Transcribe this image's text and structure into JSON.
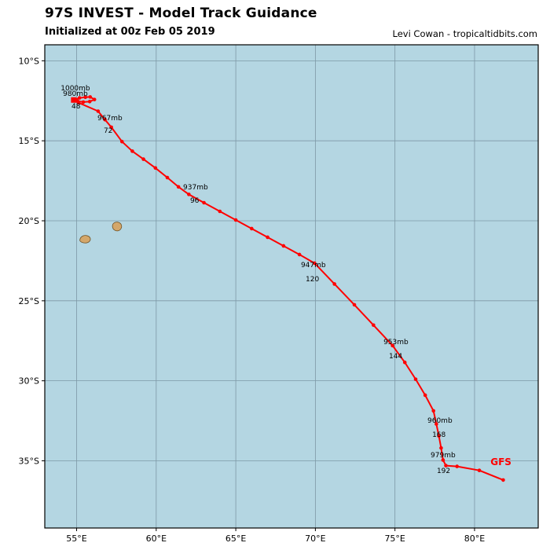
{
  "header": {
    "title": "97S INVEST - Model Track Guidance",
    "subtitle": "Initialized at 00z Feb 05 2019",
    "credit": "Levi Cowan - tropicaltidbits.com"
  },
  "chart_data": {
    "type": "line",
    "title": "97S INVEST - Model Track Guidance",
    "subtitle": "Initialized at 00z Feb 05 2019",
    "grid": true,
    "legend_position": "none",
    "x_axis": {
      "range": [
        53,
        84
      ],
      "ticks": [
        55,
        60,
        65,
        70,
        75,
        80
      ],
      "tick_labels": [
        "55°E",
        "60°E",
        "65°E",
        "70°E",
        "75°E",
        "80°E"
      ]
    },
    "y_axis": {
      "range": [
        9,
        39.2
      ],
      "direction": "south-down",
      "ticks": [
        10,
        15,
        20,
        25,
        30,
        35
      ],
      "tick_labels": [
        "10°S",
        "15°S",
        "20°S",
        "25°S",
        "30°S",
        "35°S"
      ]
    },
    "colors": {
      "ocean": "#b4d6e2",
      "grid": "#7d98a6",
      "border": "#000000",
      "track": "#ff0000",
      "land_fill": "#d4a76a",
      "land_stroke": "#6e5126",
      "text": "#000000"
    },
    "series": [
      {
        "name": "GFS",
        "color": "#ff0000",
        "points_lon_lat": [
          [
            54.82,
            12.45
          ],
          [
            55.18,
            12.32
          ],
          [
            55.55,
            12.28
          ],
          [
            55.85,
            12.26
          ],
          [
            56.12,
            12.42
          ],
          [
            55.82,
            12.55
          ],
          [
            55.42,
            12.58
          ],
          [
            55.06,
            12.52
          ],
          [
            55.12,
            12.62
          ],
          [
            56.35,
            13.15
          ],
          [
            56.78,
            13.68
          ],
          [
            57.18,
            14.15
          ],
          [
            57.85,
            15.05
          ],
          [
            58.5,
            15.65
          ],
          [
            59.2,
            16.15
          ],
          [
            59.95,
            16.7
          ],
          [
            60.7,
            17.3
          ],
          [
            61.4,
            17.88
          ],
          [
            62.05,
            18.35
          ],
          [
            63.0,
            18.87
          ],
          [
            64.0,
            19.41
          ],
          [
            65.0,
            19.95
          ],
          [
            66.0,
            20.49
          ],
          [
            67.0,
            21.03
          ],
          [
            68.0,
            21.57
          ],
          [
            69.0,
            22.11
          ],
          [
            69.95,
            22.65
          ],
          [
            71.2,
            23.95
          ],
          [
            72.45,
            25.25
          ],
          [
            73.65,
            26.52
          ],
          [
            74.85,
            27.8
          ],
          [
            75.62,
            28.85
          ],
          [
            76.3,
            29.9
          ],
          [
            76.9,
            30.9
          ],
          [
            77.42,
            31.88
          ],
          [
            77.6,
            32.7
          ],
          [
            77.76,
            33.45
          ],
          [
            77.9,
            34.2
          ],
          [
            78.02,
            34.95
          ],
          [
            78.2,
            35.3
          ],
          [
            78.9,
            35.35
          ],
          [
            80.3,
            35.6
          ],
          [
            81.8,
            36.2
          ]
        ]
      }
    ],
    "track_annotations": [
      {
        "text": "1000mb",
        "lon": 54.0,
        "lat": 11.85
      },
      {
        "text": "980mb",
        "lon": 54.14,
        "lat": 12.19
      },
      {
        "text": "48",
        "lon": 54.68,
        "lat": 12.98
      },
      {
        "text": "967mb",
        "lon": 56.31,
        "lat": 13.71
      },
      {
        "text": "72",
        "lon": 56.7,
        "lat": 14.5
      },
      {
        "text": "937mb",
        "lon": 61.69,
        "lat": 18.04
      },
      {
        "text": "96",
        "lon": 62.13,
        "lat": 18.87
      },
      {
        "text": "947mb",
        "lon": 69.09,
        "lat": 22.9
      },
      {
        "text": "120",
        "lon": 69.39,
        "lat": 23.78
      },
      {
        "text": "953mb",
        "lon": 74.28,
        "lat": 27.71
      },
      {
        "text": "144",
        "lon": 74.62,
        "lat": 28.59
      },
      {
        "text": "960mb",
        "lon": 77.04,
        "lat": 32.62
      },
      {
        "text": "168",
        "lon": 77.34,
        "lat": 33.5
      },
      {
        "text": "979mb",
        "lon": 77.24,
        "lat": 34.78
      },
      {
        "text": "192",
        "lon": 77.63,
        "lat": 35.76
      }
    ],
    "model_label": {
      "text": "GFS",
      "lon": 81.0,
      "lat": 35.27,
      "color": "#ff0000"
    },
    "islands": [
      {
        "lon": 55.55,
        "lat": 21.15
      },
      {
        "lon": 57.55,
        "lat": 20.35
      }
    ]
  }
}
